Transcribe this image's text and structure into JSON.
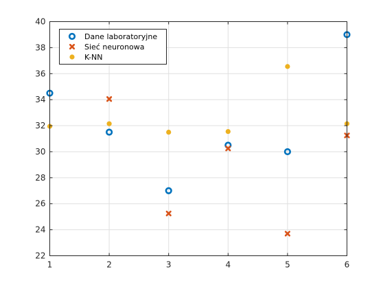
{
  "chart_data": {
    "type": "scatter",
    "title": "",
    "xlabel": "",
    "ylabel": "",
    "xlim": [
      1,
      6
    ],
    "ylim": [
      22,
      40
    ],
    "xticks": [
      1,
      2,
      3,
      4,
      5,
      6
    ],
    "yticks": [
      22,
      24,
      26,
      28,
      30,
      32,
      34,
      36,
      38,
      40
    ],
    "grid": true,
    "box": true,
    "legend_position": "top-left",
    "series": [
      {
        "name": "Dane laboratoryjne",
        "marker": "ring",
        "color": "#0072BD",
        "points": [
          [
            1,
            34.5
          ],
          [
            2,
            31.5
          ],
          [
            3,
            27.0
          ],
          [
            4,
            30.5
          ],
          [
            5,
            30.0
          ],
          [
            6,
            39.0
          ]
        ]
      },
      {
        "name": "Sieć neuronowa",
        "marker": "x",
        "color": "#D95319",
        "points": [
          [
            2,
            34.05
          ],
          [
            3,
            25.25
          ],
          [
            4,
            30.25
          ],
          [
            5,
            23.7
          ],
          [
            6,
            31.25
          ]
        ]
      },
      {
        "name": "K-NN",
        "marker": "dot",
        "color": "#EDB120",
        "points": [
          [
            1,
            31.95
          ],
          [
            2,
            32.15
          ],
          [
            3,
            31.5
          ],
          [
            4,
            31.55
          ],
          [
            5,
            36.55
          ],
          [
            6,
            32.15
          ]
        ]
      }
    ]
  }
}
